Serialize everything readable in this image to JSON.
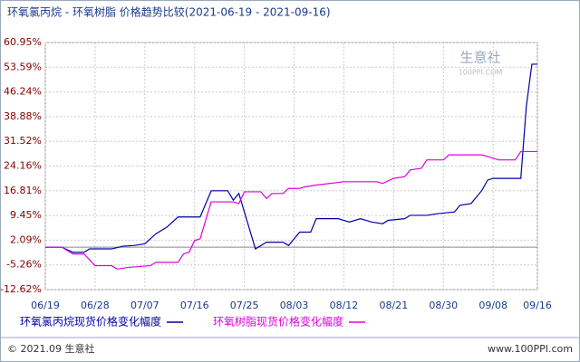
{
  "chart_data": {
    "type": "line",
    "title": "环氧氯丙烷 - 环氧树脂 价格趋势比较(2021-06-19 - 2021-09-16)",
    "watermark": [
      "生意社",
      "100PPI.COM"
    ],
    "footer_left": "© 2021.09 生意社",
    "footer_right": "www.100PPI.com",
    "xlim": [
      "06/19",
      "09/16"
    ],
    "xticks": [
      "06/19",
      "06/28",
      "07/07",
      "07/16",
      "07/25",
      "08/03",
      "08/12",
      "08/21",
      "08/30",
      "09/08",
      "09/16"
    ],
    "ylim": [
      -12.62,
      60.95
    ],
    "yticks": [
      {
        "value": -12.62,
        "label": "-12.62%"
      },
      {
        "value": -5.26,
        "label": "-5.26%"
      },
      {
        "value": 2.09,
        "label": "2.09%"
      },
      {
        "value": 9.45,
        "label": "9.45%"
      },
      {
        "value": 16.81,
        "label": "16.81%"
      },
      {
        "value": 24.16,
        "label": "24.16%"
      },
      {
        "value": 31.52,
        "label": "31.52%"
      },
      {
        "value": 38.88,
        "label": "38.88%"
      },
      {
        "value": 46.24,
        "label": "46.24%"
      },
      {
        "value": 53.59,
        "label": "53.59%"
      },
      {
        "value": 60.95,
        "label": "60.95%"
      }
    ],
    "grid": true,
    "series": [
      {
        "name": "环氧氯丙烷现货价格变化幅度",
        "color": "#0000aa",
        "x": [
          "06/19",
          "06/22",
          "06/24",
          "06/26",
          "06/27",
          "07/01",
          "07/03",
          "07/05",
          "07/07",
          "07/09",
          "07/11",
          "07/13",
          "07/17",
          "07/19",
          "07/22",
          "07/23",
          "07/24",
          "07/27",
          "07/29",
          "08/01",
          "08/02",
          "08/04",
          "08/06",
          "08/07",
          "08/11",
          "08/13",
          "08/15",
          "08/17",
          "08/19",
          "08/20",
          "08/23",
          "08/24",
          "08/27",
          "08/29",
          "09/01",
          "09/02",
          "09/04",
          "09/06",
          "09/07",
          "09/08",
          "09/13",
          "09/14",
          "09/15",
          "09/16"
        ],
        "values": [
          0,
          0,
          -1.5,
          -1.5,
          -0.5,
          -0.5,
          0.3,
          0.5,
          1,
          4,
          6,
          9,
          9,
          16.8,
          16.8,
          14,
          16,
          -0.5,
          1.5,
          1.5,
          0.5,
          4.5,
          4.5,
          8.5,
          8.5,
          7.5,
          8.5,
          7.5,
          7,
          8,
          8.5,
          9.5,
          9.5,
          10,
          10.5,
          12.5,
          13,
          17,
          20,
          20.5,
          20.5,
          42,
          54.5,
          54.5
        ]
      },
      {
        "name": "环氧树脂现货价格变化幅度",
        "color": "#dd00dd",
        "x": [
          "06/19",
          "06/22",
          "06/24",
          "06/26",
          "06/28",
          "07/01",
          "07/02",
          "07/04",
          "07/08",
          "07/09",
          "07/13",
          "07/14",
          "07/15",
          "07/16",
          "07/17",
          "07/19",
          "07/23",
          "07/24",
          "07/25",
          "07/28",
          "07/29",
          "07/30",
          "08/01",
          "08/02",
          "08/04",
          "08/05",
          "08/07",
          "08/12",
          "08/18",
          "08/19",
          "08/21",
          "08/23",
          "08/24",
          "08/26",
          "08/27",
          "08/30",
          "08/31",
          "09/06",
          "09/07",
          "09/09",
          "09/12",
          "09/13",
          "09/16"
        ],
        "values": [
          0,
          0,
          -2,
          -2,
          -5.5,
          -5.5,
          -6.5,
          -6,
          -5.5,
          -4.5,
          -4.5,
          -2,
          -1.5,
          2,
          2.5,
          13.5,
          13.5,
          13,
          16.5,
          16.5,
          14.5,
          16,
          16,
          17.5,
          17.5,
          18,
          18.5,
          19.5,
          19.5,
          19,
          20.5,
          21,
          23,
          23.5,
          26,
          26,
          27.5,
          27.5,
          27,
          26,
          26,
          28.5,
          28.5
        ]
      }
    ]
  }
}
